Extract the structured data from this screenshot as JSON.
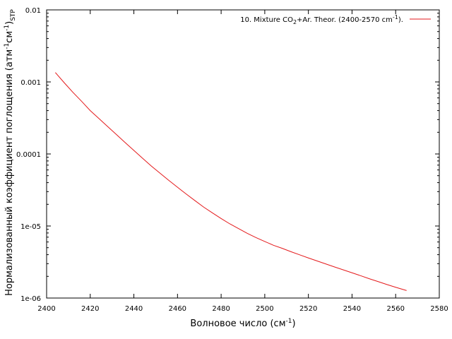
{
  "chart_data": {
    "type": "line",
    "y_scale": "log",
    "xlim": [
      2400,
      2580
    ],
    "ylim": [
      1e-06,
      0.01
    ],
    "x_ticks": [
      2400,
      2420,
      2440,
      2460,
      2480,
      2500,
      2520,
      2540,
      2560,
      2580
    ],
    "x_tick_labels": [
      "2400",
      "2420",
      "2440",
      "2460",
      "2480",
      "2500",
      "2520",
      "2540",
      "2560",
      "2580"
    ],
    "y_ticks": [
      1e-06,
      1e-05,
      0.0001,
      0.001,
      0.01
    ],
    "y_tick_labels": [
      "1e-06",
      "1e-05",
      "0.0001",
      "0.001",
      "0.01"
    ],
    "xlabel": {
      "base": "Волновое число (см",
      "sup": "-1",
      "tail": ")"
    },
    "ylabel": {
      "part1": "Нормализованный коэффициент поглощения (атм",
      "sup1": "-1",
      "part2": "см",
      "sup2": "-1",
      "part3": ")",
      "sub": "STP"
    },
    "legend_position": "top-right",
    "grid": false,
    "series": [
      {
        "legend": {
          "part1": "10. Mixture CO",
          "sub": "2",
          "part2": "+Ar. Theor. (2400-2570 cm",
          "sup": "-1",
          "part3": ")."
        },
        "color": "#e41a1c",
        "x": [
          2404,
          2408,
          2412,
          2416,
          2420,
          2424,
          2428,
          2432,
          2436,
          2440,
          2444,
          2448,
          2452,
          2456,
          2460,
          2464,
          2468,
          2472,
          2476,
          2480,
          2484,
          2488,
          2492,
          2496,
          2500,
          2504,
          2508,
          2512,
          2516,
          2520,
          2524,
          2528,
          2532,
          2536,
          2540,
          2544,
          2548,
          2552,
          2556,
          2560,
          2565
        ],
        "y": [
          0.00135,
          0.00098,
          0.00072,
          0.00054,
          0.0004,
          0.00031,
          0.00024,
          0.000186,
          0.000144,
          0.000112,
          8.7e-05,
          6.8e-05,
          5.4e-05,
          4.3e-05,
          3.45e-05,
          2.78e-05,
          2.25e-05,
          1.83e-05,
          1.52e-05,
          1.27e-05,
          1.07e-05,
          9.2e-06,
          7.9e-06,
          6.9e-06,
          6.1e-06,
          5.4e-06,
          4.9e-06,
          4.4e-06,
          3.98e-06,
          3.6e-06,
          3.27e-06,
          2.97e-06,
          2.7e-06,
          2.46e-06,
          2.24e-06,
          2.04e-06,
          1.85e-06,
          1.69e-06,
          1.54e-06,
          1.41e-06,
          1.27e-06
        ]
      }
    ]
  }
}
